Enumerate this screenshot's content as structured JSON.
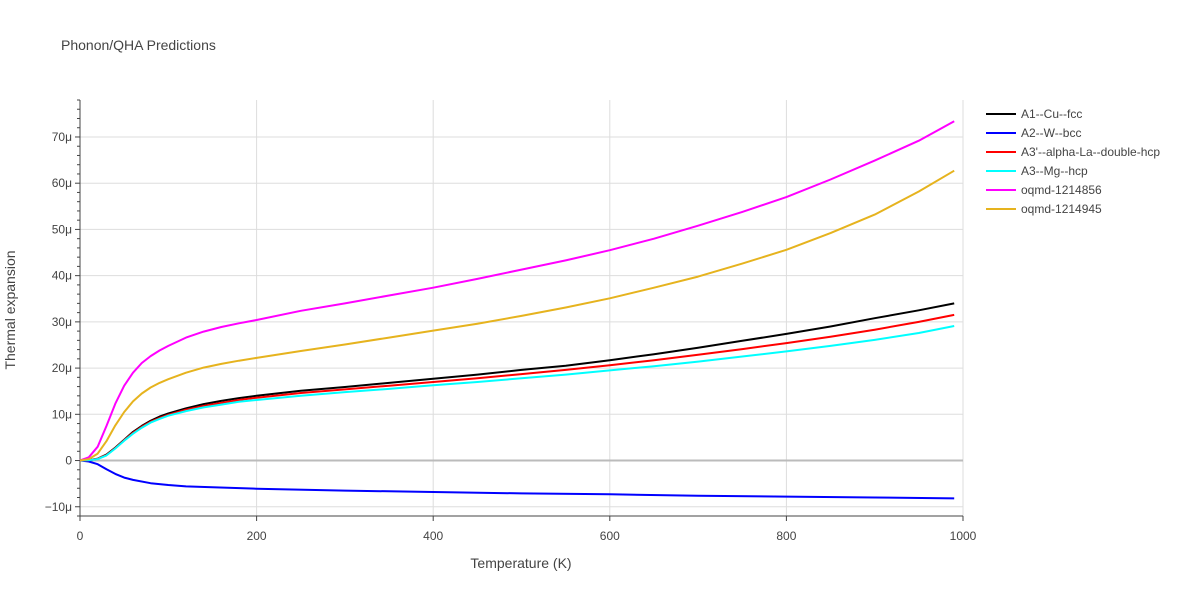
{
  "chart_data": {
    "type": "line",
    "title": "Phonon/QHA Predictions",
    "xlabel": "Temperature (K)",
    "ylabel": "Thermal expansion",
    "xlim": [
      0,
      1000
    ],
    "ylim": [
      -12,
      78
    ],
    "x_ticks": [
      0,
      200,
      400,
      600,
      800,
      1000
    ],
    "x_tick_labels": [
      "0",
      "200",
      "400",
      "600",
      "800",
      "1000"
    ],
    "y_ticks": [
      -10,
      0,
      10,
      20,
      30,
      40,
      50,
      60,
      70
    ],
    "y_tick_labels": [
      "−10μ",
      "0",
      "10μ",
      "20μ",
      "30μ",
      "40μ",
      "50μ",
      "60μ",
      "70μ"
    ],
    "y_unit_scale": "1e-6",
    "grid": true,
    "legend_position": "right",
    "series": [
      {
        "name": "A1--Cu--fcc",
        "color": "#000000",
        "x": [
          0,
          10,
          20,
          30,
          40,
          50,
          60,
          70,
          80,
          90,
          100,
          120,
          140,
          160,
          180,
          200,
          250,
          300,
          350,
          400,
          450,
          500,
          550,
          600,
          650,
          700,
          750,
          800,
          850,
          900,
          950,
          990
        ],
        "y": [
          0,
          0.1,
          0.4,
          1.3,
          2.8,
          4.5,
          6.2,
          7.5,
          8.6,
          9.5,
          10.2,
          11.3,
          12.2,
          12.9,
          13.5,
          14.0,
          15.1,
          15.9,
          16.8,
          17.7,
          18.6,
          19.6,
          20.5,
          21.7,
          23.0,
          24.4,
          25.9,
          27.4,
          29.0,
          30.8,
          32.5,
          34.0
        ]
      },
      {
        "name": "A2--W--bcc",
        "color": "#0000ff",
        "x": [
          0,
          10,
          20,
          30,
          40,
          50,
          60,
          80,
          100,
          120,
          150,
          200,
          300,
          400,
          500,
          600,
          700,
          800,
          900,
          990
        ],
        "y": [
          0,
          -0.2,
          -0.8,
          -1.9,
          -2.9,
          -3.7,
          -4.2,
          -4.9,
          -5.3,
          -5.6,
          -5.8,
          -6.1,
          -6.5,
          -6.8,
          -7.1,
          -7.3,
          -7.6,
          -7.8,
          -8.0,
          -8.2
        ]
      },
      {
        "name": "A3'--alpha-La--double-hcp",
        "color": "#ff0000",
        "x": [
          0,
          10,
          20,
          30,
          40,
          50,
          60,
          70,
          80,
          90,
          100,
          120,
          140,
          160,
          180,
          200,
          250,
          300,
          350,
          400,
          450,
          500,
          550,
          600,
          650,
          700,
          750,
          800,
          850,
          900,
          950,
          990
        ],
        "y": [
          0,
          0.1,
          0.4,
          1.2,
          2.7,
          4.4,
          6.0,
          7.3,
          8.4,
          9.2,
          9.9,
          11.0,
          11.8,
          12.5,
          13.1,
          13.6,
          14.6,
          15.4,
          16.2,
          17.0,
          17.8,
          18.7,
          19.6,
          20.6,
          21.7,
          22.9,
          24.1,
          25.4,
          26.8,
          28.3,
          30.0,
          31.5
        ]
      },
      {
        "name": "A3--Mg--hcp",
        "color": "#00ffff",
        "x": [
          0,
          10,
          20,
          30,
          40,
          50,
          60,
          70,
          80,
          90,
          100,
          120,
          140,
          160,
          180,
          200,
          250,
          300,
          350,
          400,
          450,
          500,
          550,
          600,
          650,
          700,
          750,
          800,
          850,
          900,
          950,
          990
        ],
        "y": [
          0,
          0.1,
          0.3,
          1.1,
          2.6,
          4.3,
          5.8,
          7.1,
          8.2,
          9.0,
          9.7,
          10.7,
          11.5,
          12.1,
          12.7,
          13.1,
          14.0,
          14.8,
          15.5,
          16.3,
          17.0,
          17.8,
          18.6,
          19.5,
          20.4,
          21.4,
          22.5,
          23.6,
          24.8,
          26.1,
          27.6,
          29.1
        ]
      },
      {
        "name": "oqmd-1214856",
        "color": "#ff00ff",
        "x": [
          0,
          10,
          20,
          30,
          40,
          50,
          60,
          70,
          80,
          90,
          100,
          120,
          140,
          160,
          180,
          200,
          250,
          300,
          350,
          400,
          450,
          500,
          550,
          600,
          650,
          700,
          750,
          800,
          850,
          900,
          950,
          990
        ],
        "y": [
          0,
          0.7,
          3.0,
          7.5,
          12.3,
          16.2,
          19.0,
          21.1,
          22.6,
          23.8,
          24.8,
          26.6,
          27.9,
          28.9,
          29.7,
          30.4,
          32.4,
          34.0,
          35.7,
          37.4,
          39.3,
          41.3,
          43.3,
          45.5,
          48.0,
          50.8,
          53.8,
          57.0,
          60.8,
          64.9,
          69.2,
          73.4
        ]
      },
      {
        "name": "oqmd-1214945",
        "color": "#e6b31e",
        "x": [
          0,
          10,
          20,
          30,
          40,
          50,
          60,
          70,
          80,
          90,
          100,
          120,
          140,
          160,
          180,
          200,
          250,
          300,
          350,
          400,
          450,
          500,
          550,
          600,
          650,
          700,
          750,
          800,
          850,
          900,
          950,
          990
        ],
        "y": [
          0,
          0.3,
          1.5,
          4.2,
          7.6,
          10.5,
          12.8,
          14.5,
          15.8,
          16.8,
          17.6,
          19.0,
          20.1,
          20.9,
          21.6,
          22.2,
          23.7,
          25.1,
          26.6,
          28.1,
          29.6,
          31.3,
          33.1,
          35.1,
          37.4,
          39.8,
          42.6,
          45.6,
          49.2,
          53.2,
          58.2,
          62.7
        ]
      }
    ]
  }
}
